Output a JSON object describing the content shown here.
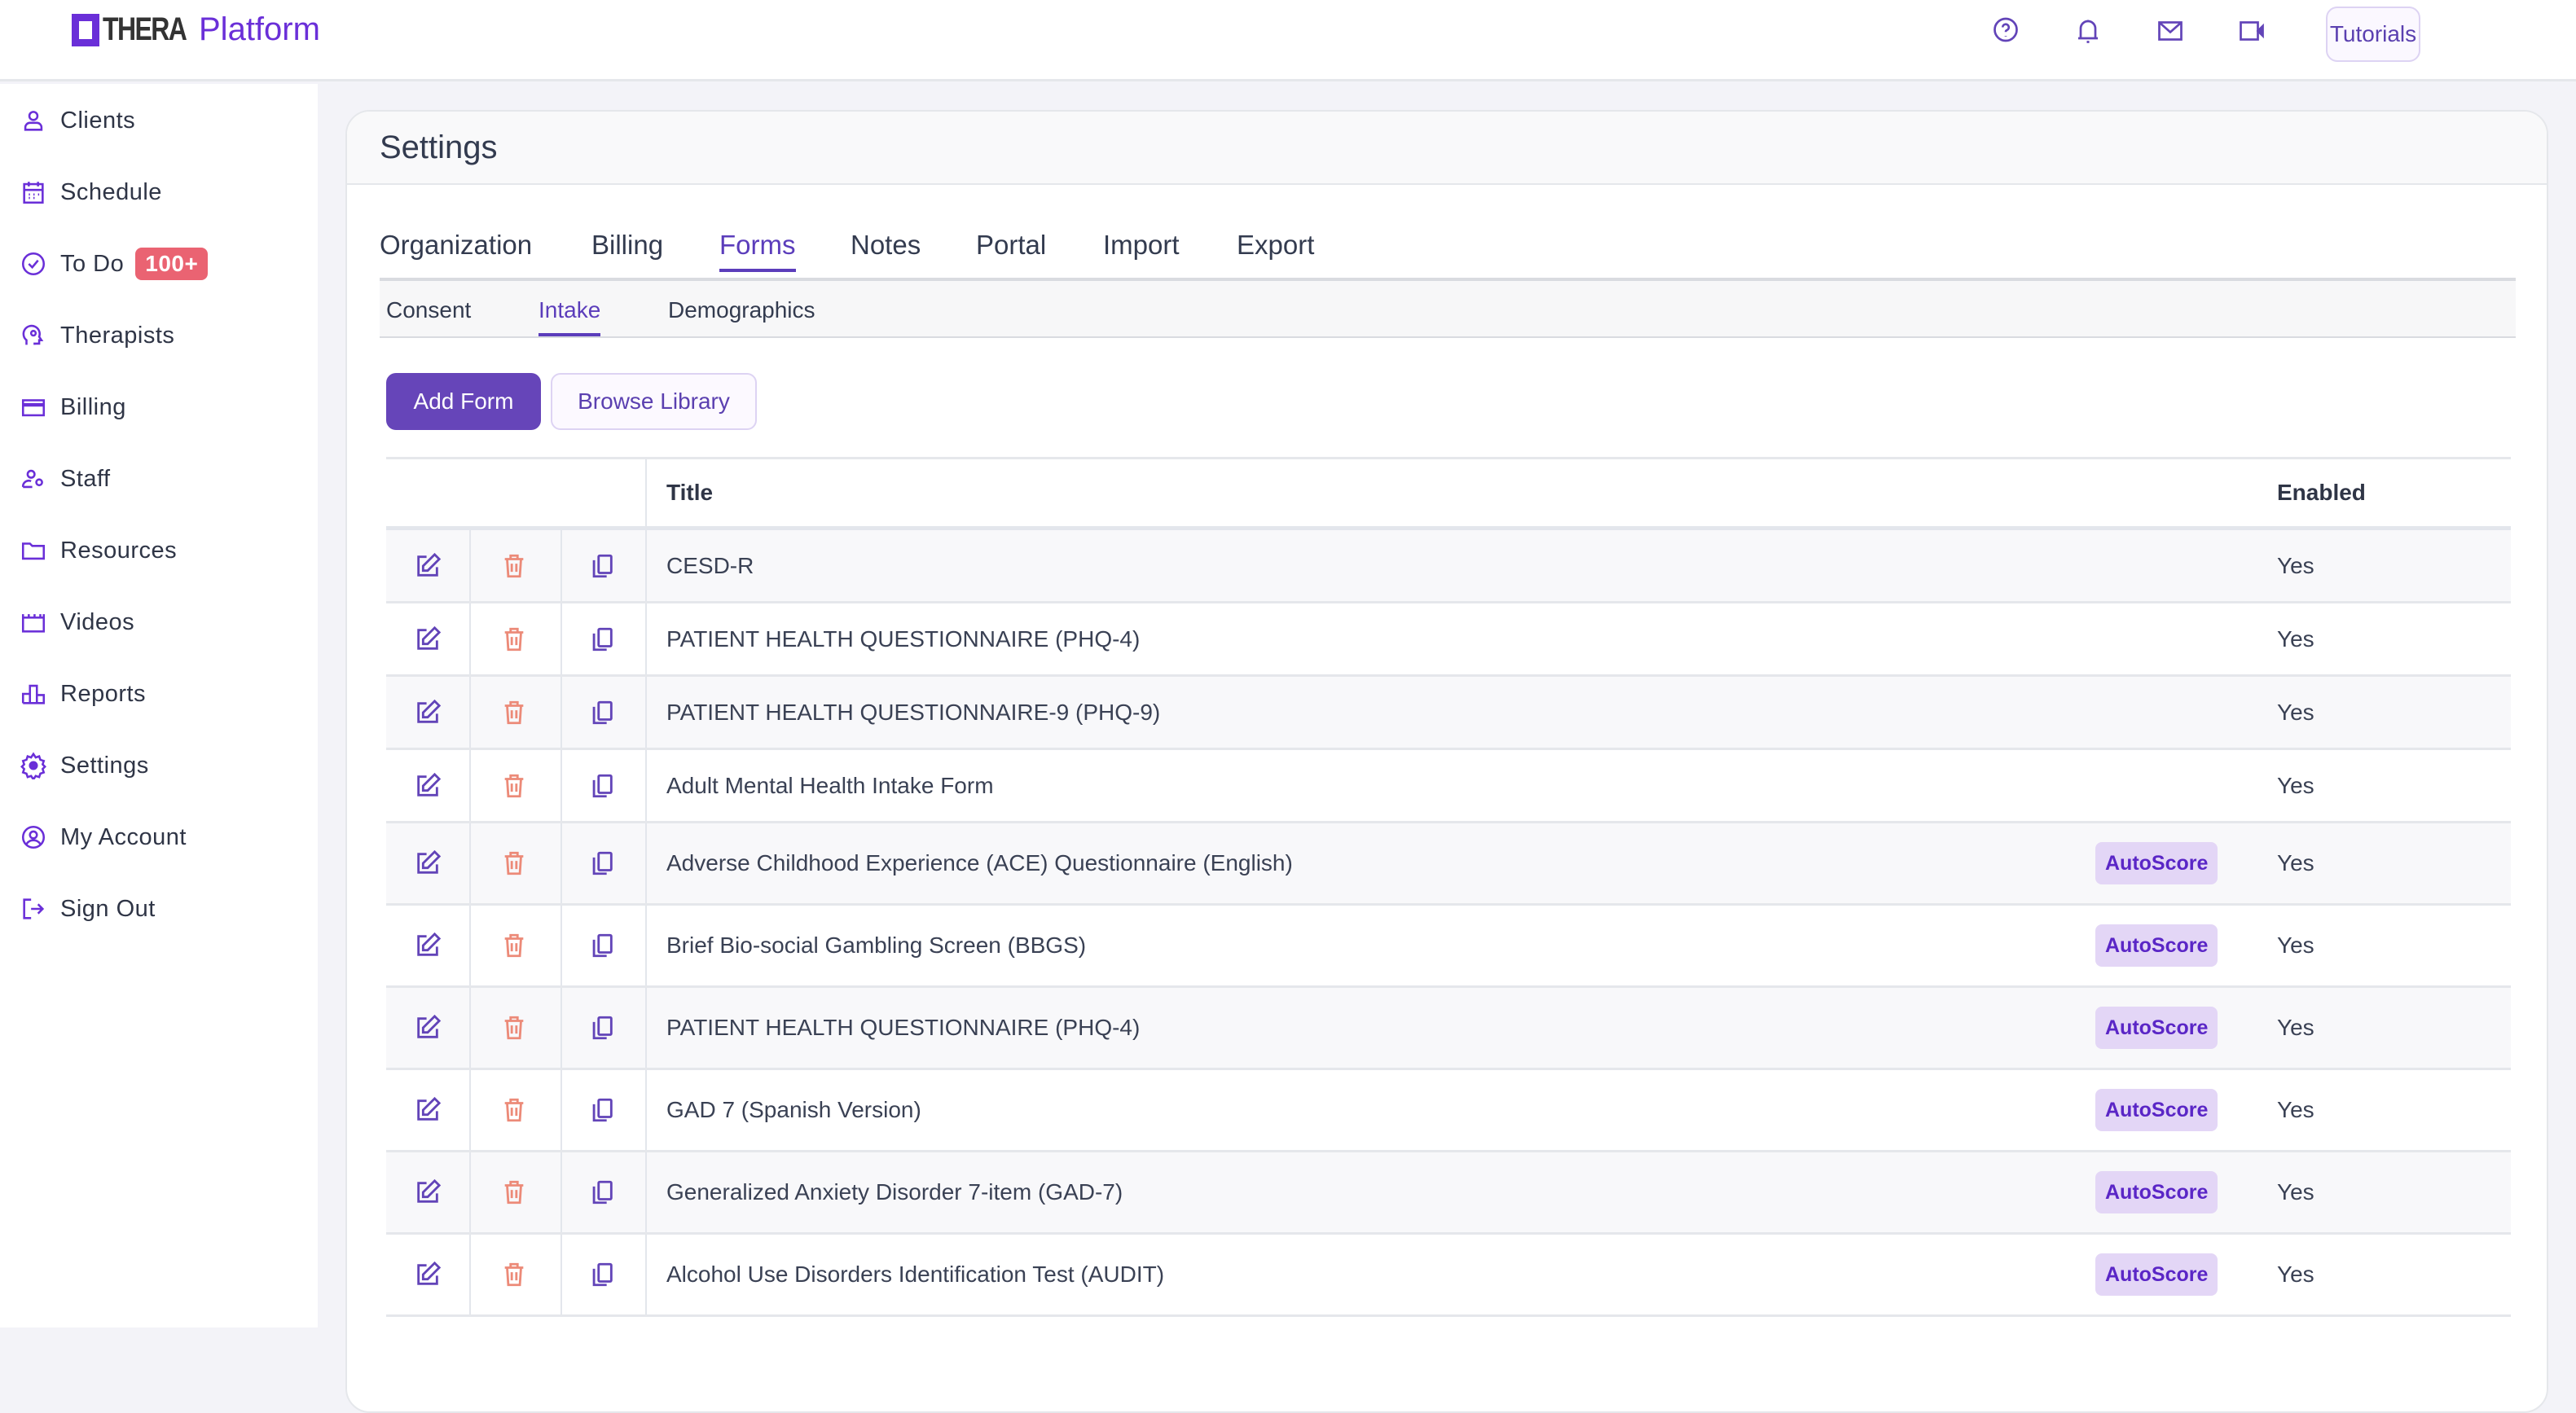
{
  "app": {
    "logo_text_bold": "THERA",
    "logo_text": "Platform",
    "brand_color": "#6a2fd8"
  },
  "header": {
    "icons": [
      "help-icon",
      "bell-icon",
      "mail-icon",
      "video-icon"
    ],
    "tutorials": "Tutorials"
  },
  "sidebar": {
    "items": [
      {
        "label": "Clients",
        "icon": "user-icon"
      },
      {
        "label": "Schedule",
        "icon": "calendar-icon"
      },
      {
        "label": "To Do",
        "icon": "check-circle-icon",
        "badge": "100+"
      },
      {
        "label": "Therapists",
        "icon": "head-gear-icon"
      },
      {
        "label": "Billing",
        "icon": "credit-card-icon"
      },
      {
        "label": "Staff",
        "icon": "user-gear-icon"
      },
      {
        "label": "Resources",
        "icon": "folder-icon"
      },
      {
        "label": "Videos",
        "icon": "clapper-icon"
      },
      {
        "label": "Reports",
        "icon": "bar-chart-icon"
      },
      {
        "label": "Settings",
        "icon": "gear-icon",
        "active": true
      },
      {
        "label": "My Account",
        "icon": "account-circle-icon"
      },
      {
        "label": "Sign Out",
        "icon": "sign-out-icon"
      }
    ]
  },
  "page": {
    "title": "Settings",
    "tabs": [
      "Organization",
      "Billing",
      "Forms",
      "Notes",
      "Portal",
      "Import",
      "Export"
    ],
    "active_tab": "Forms",
    "subtabs": [
      "Consent",
      "Intake",
      "Demographics"
    ],
    "active_subtab": "Intake",
    "add_form": "Add Form",
    "browse_library": "Browse Library",
    "table": {
      "headers": {
        "title": "Title",
        "enabled": "Enabled"
      },
      "rows": [
        {
          "title": "CESD-R",
          "autoscore": "",
          "enabled": "Yes"
        },
        {
          "title": "PATIENT HEALTH QUESTIONNAIRE (PHQ-4)",
          "autoscore": "",
          "enabled": "Yes"
        },
        {
          "title": "PATIENT HEALTH QUESTIONNAIRE-9 (PHQ-9)",
          "autoscore": "",
          "enabled": "Yes"
        },
        {
          "title": "Adult Mental Health Intake Form",
          "autoscore": "",
          "enabled": "Yes"
        },
        {
          "title": "Adverse Childhood Experience (ACE) Questionnaire (English)",
          "autoscore": "AutoScore",
          "enabled": "Yes"
        },
        {
          "title": "Brief Bio-social Gambling Screen (BBGS)",
          "autoscore": "AutoScore",
          "enabled": "Yes"
        },
        {
          "title": "PATIENT HEALTH QUESTIONNAIRE (PHQ-4)",
          "autoscore": "AutoScore",
          "enabled": "Yes"
        },
        {
          "title": "GAD 7 (Spanish Version)",
          "autoscore": "AutoScore",
          "enabled": "Yes"
        },
        {
          "title": "Generalized Anxiety Disorder 7-item (GAD-7)",
          "autoscore": "AutoScore",
          "enabled": "Yes"
        },
        {
          "title": "Alcohol Use Disorders Identification Test (AUDIT)",
          "autoscore": "AutoScore",
          "enabled": "Yes"
        }
      ]
    }
  }
}
